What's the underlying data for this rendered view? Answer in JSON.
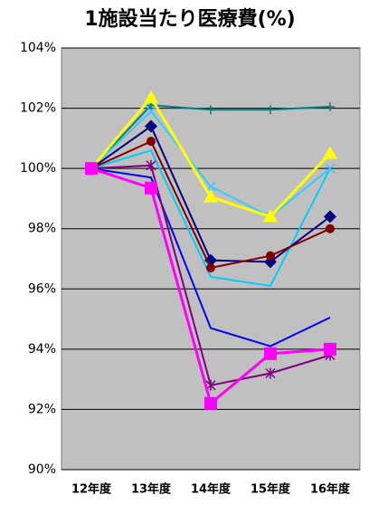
{
  "chart_data": {
    "type": "line",
    "title": "1施設当たり医療費(%)",
    "categories": [
      "12年度",
      "13年度",
      "14年度",
      "15年度",
      "16年度"
    ],
    "ylim": [
      90,
      104
    ],
    "yticks": [
      {
        "value": 90,
        "label": "90%"
      },
      {
        "value": 92,
        "label": "92%"
      },
      {
        "value": 94,
        "label": "94%"
      },
      {
        "value": 96,
        "label": "96%"
      },
      {
        "value": 98,
        "label": "98%"
      },
      {
        "value": 100,
        "label": "100%"
      },
      {
        "value": 102,
        "label": "102%"
      },
      {
        "value": 104,
        "label": "104%"
      }
    ],
    "grid": true,
    "series": [
      {
        "color": "#008080",
        "marker": "plus",
        "values": [
          100,
          102.1,
          101.95,
          101.95,
          102.05
        ]
      },
      {
        "color": "#00ccff",
        "marker": "none",
        "values": [
          100,
          100.6,
          96.4,
          96.1,
          100.0
        ]
      },
      {
        "color": "#33ccff",
        "marker": "x",
        "values": [
          100,
          101.9,
          99.4,
          98.4,
          100.0
        ]
      },
      {
        "color": "#ffff00",
        "marker": "triangle",
        "values": [
          100,
          102.35,
          99.05,
          98.4,
          100.5
        ]
      },
      {
        "color": "#000080",
        "marker": "diamond",
        "values": [
          100,
          101.4,
          96.95,
          96.9,
          98.4
        ]
      },
      {
        "color": "#800000",
        "marker": "circle",
        "values": [
          100,
          100.9,
          96.7,
          97.1,
          98.0
        ]
      },
      {
        "color": "#0000ff",
        "marker": "none",
        "values": [
          100,
          99.7,
          94.7,
          94.1,
          95.05
        ]
      },
      {
        "color": "#800080",
        "marker": "star",
        "values": [
          100,
          100.1,
          92.8,
          93.2,
          93.8
        ]
      },
      {
        "color": "#ff00ff",
        "marker": "square",
        "values": [
          100,
          99.35,
          92.2,
          93.85,
          94.0
        ]
      }
    ]
  }
}
